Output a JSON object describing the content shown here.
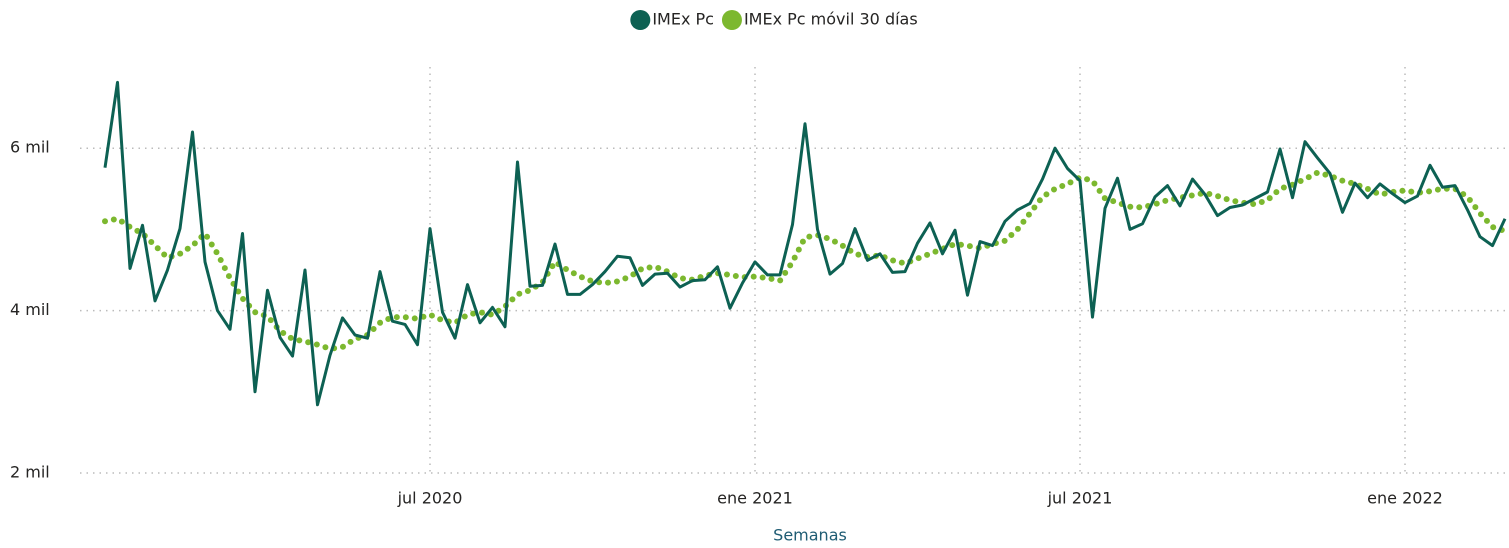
{
  "chart_data": {
    "type": "line",
    "legend": "top",
    "x_label": "Semanas",
    "categories": [
      null,
      null,
      null,
      null,
      null,
      null,
      null,
      null,
      null,
      null,
      null,
      null,
      null,
      null,
      null,
      null,
      null,
      null,
      null,
      null,
      null,
      null,
      null,
      null,
      null,
      null,
      "jul 2020",
      null,
      null,
      null,
      null,
      null,
      null,
      null,
      null,
      null,
      null,
      null,
      null,
      null,
      null,
      null,
      null,
      null,
      null,
      null,
      null,
      null,
      null,
      null,
      null,
      null,
      "ene 2021",
      null,
      null,
      null,
      null,
      null,
      null,
      null,
      null,
      null,
      null,
      null,
      null,
      null,
      null,
      null,
      null,
      null,
      null,
      null,
      null,
      null,
      null,
      null,
      null,
      null,
      "jul 2021",
      null,
      null,
      null,
      null,
      null,
      null,
      null,
      null,
      null,
      null,
      null,
      null,
      null,
      null,
      null,
      null,
      null,
      null,
      null,
      null,
      null,
      null,
      null,
      null,
      null,
      "ene 2022",
      null,
      null,
      null,
      null,
      null,
      null,
      null,
      null
    ],
    "series": [
      {
        "name": "IMEx Pc",
        "color": "#0d6153",
        "style": "solid",
        "values": [
          5760,
          6810,
          4520,
          5050,
          4120,
          4500,
          5010,
          6200,
          4600,
          4000,
          3770,
          4950,
          3000,
          4250,
          3670,
          3440,
          4500,
          2840,
          3450,
          3910,
          3700,
          3660,
          4480,
          3870,
          3830,
          3580,
          5010,
          3980,
          3660,
          4320,
          3850,
          4040,
          3800,
          5830,
          4300,
          4310,
          4820,
          4200,
          4200,
          4320,
          4480,
          4670,
          4650,
          4310,
          4450,
          4460,
          4290,
          4370,
          4380,
          4540,
          4030,
          4340,
          4600,
          4440,
          4440,
          5060,
          6300,
          5000,
          4450,
          4580,
          5010,
          4620,
          4700,
          4470,
          4480,
          4830,
          5080,
          4700,
          4990,
          4190,
          4850,
          4800,
          5100,
          5240,
          5320,
          5620,
          6000,
          5750,
          5600,
          3920,
          5260,
          5630,
          5000,
          5070,
          5400,
          5540,
          5290,
          5620,
          5430,
          5170,
          5270,
          5300,
          5380,
          5460,
          5990,
          5390,
          6080,
          5880,
          5690,
          5210,
          5570,
          5390,
          5560,
          5440,
          5330,
          5410,
          5790,
          5520,
          5540,
          5240,
          4910,
          4800,
          5130
        ]
      },
      {
        "name": "IMEx Pc móvil 30 días",
        "color": "#7cb82f",
        "style": "dotted",
        "values": [
          5100,
          5130,
          5030,
          4950,
          4800,
          4650,
          4700,
          4800,
          4950,
          4700,
          4400,
          4150,
          3980,
          3930,
          3750,
          3650,
          3620,
          3580,
          3530,
          3550,
          3650,
          3700,
          3850,
          3920,
          3920,
          3900,
          3950,
          3880,
          3850,
          3950,
          3980,
          3950,
          4050,
          4200,
          4250,
          4350,
          4600,
          4500,
          4420,
          4360,
          4340,
          4360,
          4420,
          4520,
          4540,
          4480,
          4400,
          4380,
          4430,
          4460,
          4440,
          4410,
          4420,
          4400,
          4370,
          4600,
          4900,
          4930,
          4880,
          4800,
          4700,
          4660,
          4680,
          4620,
          4580,
          4640,
          4700,
          4760,
          4820,
          4800,
          4770,
          4820,
          4860,
          5000,
          5200,
          5400,
          5500,
          5560,
          5640,
          5600,
          5380,
          5330,
          5280,
          5270,
          5310,
          5360,
          5390,
          5420,
          5450,
          5410,
          5360,
          5330,
          5310,
          5360,
          5500,
          5550,
          5620,
          5700,
          5660,
          5600,
          5560,
          5500,
          5430,
          5460,
          5480,
          5450,
          5470,
          5500,
          5500,
          5400,
          5200,
          5030,
          4980
        ]
      }
    ],
    "ylim": [
      2000,
      7000
    ],
    "yticks": [
      {
        "value": 2000,
        "label": "2 mil"
      },
      {
        "value": 4000,
        "label": "4 mil"
      },
      {
        "value": 6000,
        "label": "6 mil"
      }
    ],
    "grid": true
  }
}
